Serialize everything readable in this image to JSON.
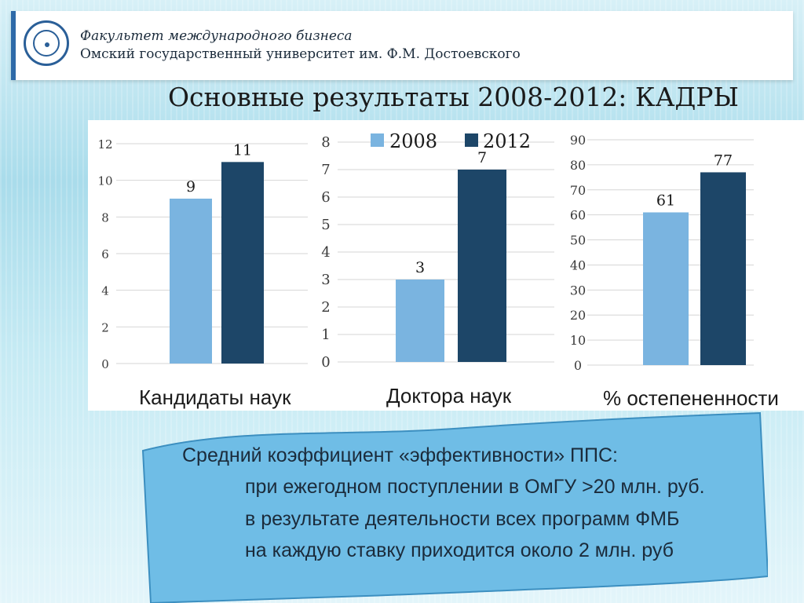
{
  "header": {
    "faculty": "Факультет международного бизнеса",
    "university": "Омский государственный университет им. Ф.М. Достоевского"
  },
  "title": "Основные результаты 2008-2012: КАДРЫ",
  "colors": {
    "series_2008": "#7ab4e0",
    "series_2012": "#1d4668",
    "banner": "#6fbde6"
  },
  "chart_data": [
    {
      "type": "bar",
      "title": "Кандидаты наук",
      "categories": [
        "Кандидаты наук"
      ],
      "series": [
        {
          "name": "2008",
          "values": [
            9
          ]
        },
        {
          "name": "2012",
          "values": [
            11
          ]
        }
      ],
      "yticks": [
        "0",
        "2",
        "4",
        "6",
        "8",
        "10",
        "12"
      ],
      "ylim": [
        0,
        12
      ]
    },
    {
      "type": "bar",
      "title": "Доктора наук",
      "categories": [
        "Доктора наук"
      ],
      "series": [
        {
          "name": "2008",
          "values": [
            3
          ]
        },
        {
          "name": "2012",
          "values": [
            7
          ]
        }
      ],
      "yticks": [
        "0",
        "1",
        "2",
        "3",
        "4",
        "5",
        "6",
        "7",
        "8"
      ],
      "ylim": [
        0,
        8
      ]
    },
    {
      "type": "bar",
      "title": "% остепененности",
      "categories": [
        "% остепененности"
      ],
      "series": [
        {
          "name": "2008",
          "values": [
            61
          ]
        },
        {
          "name": "2012",
          "values": [
            77
          ]
        }
      ],
      "yticks": [
        "0",
        "10",
        "20",
        "30",
        "40",
        "50",
        "60",
        "70",
        "80",
        "90"
      ],
      "ylim": [
        0,
        90
      ]
    }
  ],
  "legend": {
    "items": [
      "2008",
      "2012"
    ],
    "placement": "top-center"
  },
  "banner": {
    "line1": "Средний коэффициент «эффективности» ППС:",
    "line2": "при ежегодном поступлении в ОмГУ >20 млн. руб.",
    "line3": "в результате деятельности всех программ ФМБ",
    "line4": "на каждую ставку приходится около 2 млн. руб"
  }
}
